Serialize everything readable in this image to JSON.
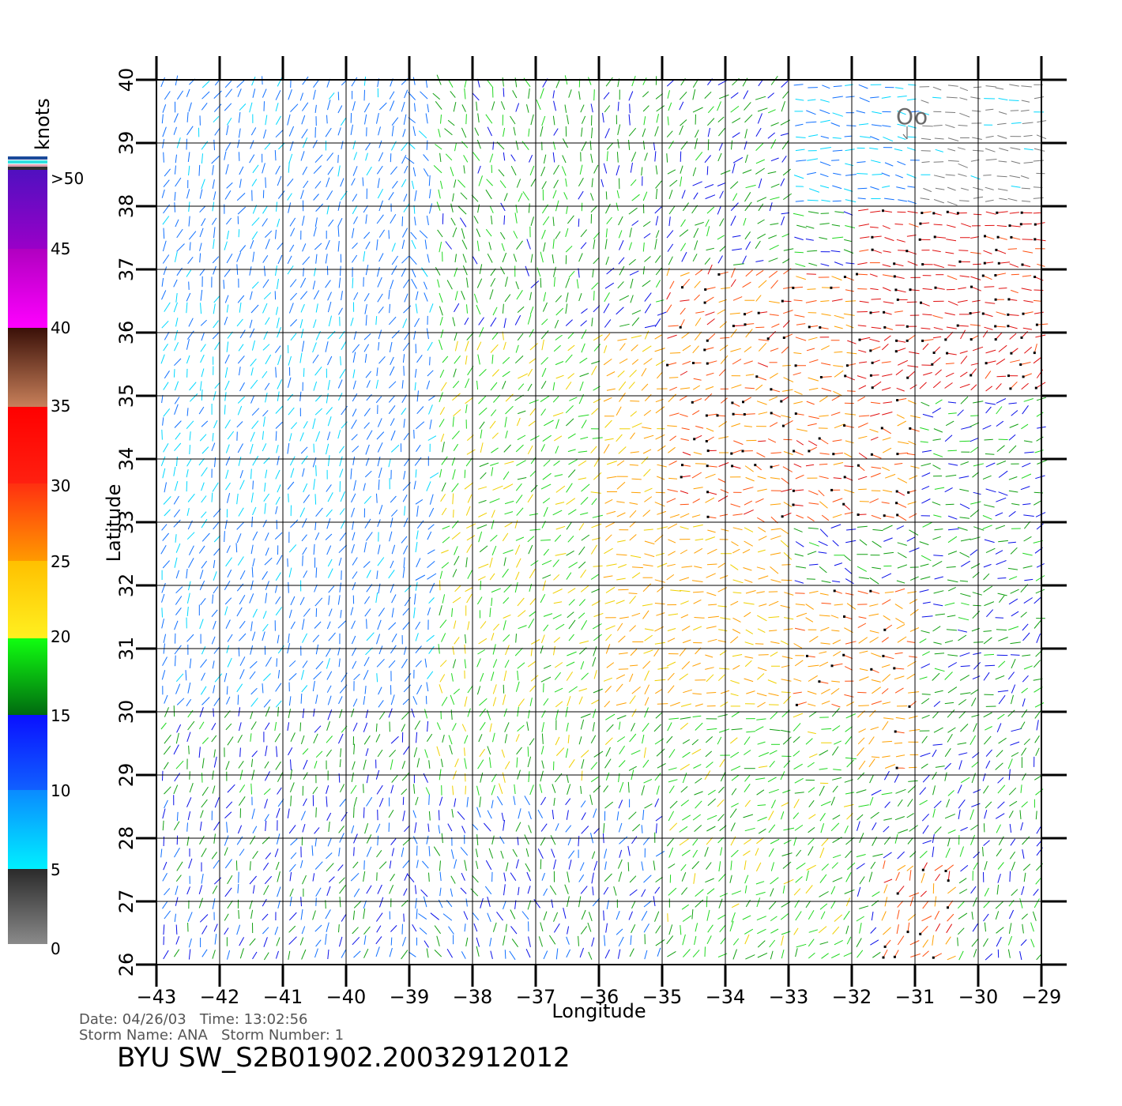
{
  "map": {
    "xlabel": "Longitude",
    "ylabel": "Latitude",
    "lon_range": [
      -43,
      -29
    ],
    "lat_range": [
      26,
      40
    ],
    "lon_ticks": [
      "−43",
      "−42",
      "−41",
      "−40",
      "−39",
      "−38",
      "−37",
      "−36",
      "−35",
      "−34",
      "−33",
      "−32",
      "−31",
      "−30",
      "−29"
    ],
    "lat_ticks": [
      "26",
      "27",
      "28",
      "29",
      "30",
      "31",
      "32",
      "33",
      "34",
      "35",
      "36",
      "37",
      "38",
      "39",
      "40"
    ],
    "grid": true,
    "storm_symbol": "Oo"
  },
  "colorbar": {
    "unit": "knots",
    "labels": [
      ">50",
      "45",
      "40",
      "35",
      "30",
      "25",
      "20",
      "15",
      "10",
      "5",
      "0"
    ],
    "colors": {
      "gray": "#8a8a8a",
      "cyan": "#00e6ff",
      "blue": "#0a1aff",
      "green": "#10d010",
      "yellow": "#ffe000",
      "orange": "#ff7a00",
      "red": "#ff2a10",
      "brown": "#6a2a10",
      "magenta": "#ff00ff",
      "purple": "#6a10c8"
    }
  },
  "footer": {
    "line1": "Date: 04/26/03   Time: 13:02:56",
    "line2": "Storm Name: ANA   Storm Number: 1",
    "title": "BYU SW_S2B01902.20032912012"
  },
  "wind_field": {
    "note_speed_bands_knots": [
      0,
      5,
      10,
      15,
      20,
      25,
      30,
      35,
      40,
      45,
      50
    ]
  }
}
